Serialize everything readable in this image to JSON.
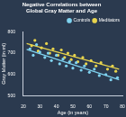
{
  "chart_data": {
    "type": "scatter",
    "title": "Negative Correlations between Global Gray Matter and Age",
    "x_label": "Age (in years)",
    "y_label": "Gray Matter (in ml)",
    "xlim": [
      20,
      80
    ],
    "xticks": [
      20,
      30,
      40,
      50,
      60,
      70,
      80
    ],
    "ylim": [
      500,
      800
    ],
    "yticks": [
      500,
      600,
      700,
      800
    ],
    "grid": false,
    "legend": "top right",
    "series": [
      {
        "name": "Controls",
        "color": "#7fd3f0",
        "marker": "circle",
        "x": [
          24,
          26,
          28,
          30,
          33,
          35,
          37,
          40,
          42,
          44,
          46,
          48,
          50,
          52,
          55,
          57,
          60,
          63,
          66,
          70,
          73,
          77
        ],
        "values": [
          720,
          690,
          740,
          705,
          680,
          700,
          665,
          690,
          650,
          672,
          640,
          660,
          630,
          655,
          620,
          640,
          610,
          625,
          595,
          600,
          575,
          585
        ],
        "trend_x": [
          22,
          78
        ],
        "trend_values": [
          718,
          575
        ]
      },
      {
        "name": "Meditators",
        "color": "#e8d44d",
        "marker": "circle",
        "x": [
          25,
          27,
          29,
          31,
          34,
          36,
          38,
          41,
          43,
          45,
          47,
          49,
          51,
          53,
          56,
          58,
          61,
          64,
          67,
          71,
          74,
          76
        ],
        "values": [
          735,
          760,
          710,
          725,
          745,
          700,
          720,
          690,
          715,
          680,
          700,
          670,
          690,
          660,
          680,
          650,
          665,
          640,
          655,
          625,
          640,
          615
        ],
        "trend_x": [
          22,
          78
        ],
        "trend_values": [
          745,
          625
        ]
      }
    ]
  }
}
